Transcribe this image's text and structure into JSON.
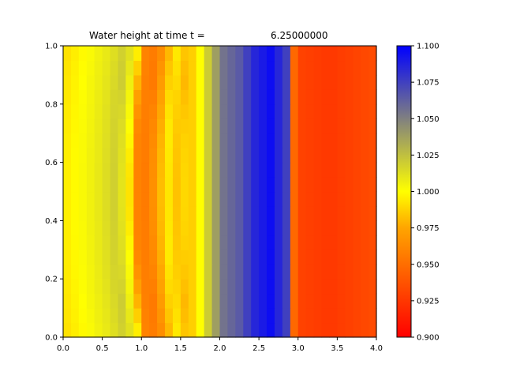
{
  "chart_data": {
    "type": "heatmap",
    "title_prefix": "Water height at time t =",
    "title_time": "6.25000000",
    "xlabel": "",
    "ylabel": "",
    "xlim": [
      0.0,
      4.0
    ],
    "ylim": [
      0.0,
      1.0
    ],
    "x_ticks": [
      0.0,
      0.5,
      1.0,
      1.5,
      2.0,
      2.5,
      3.0,
      3.5,
      4.0
    ],
    "x_tick_labels": [
      "0.0",
      "0.5",
      "1.0",
      "1.5",
      "2.0",
      "2.5",
      "3.0",
      "3.5",
      "4.0"
    ],
    "y_ticks": [
      0.0,
      0.2,
      0.4,
      0.6,
      0.8,
      1.0
    ],
    "y_tick_labels": [
      "0.0",
      "0.2",
      "0.4",
      "0.6",
      "0.8",
      "1.0"
    ],
    "grid": false,
    "colorbar": {
      "range": [
        0.9,
        1.1
      ],
      "ticks": [
        0.9,
        0.925,
        0.95,
        0.975,
        1.0,
        1.025,
        1.05,
        1.075,
        1.1
      ],
      "tick_labels": [
        "0.900",
        "0.925",
        "0.950",
        "0.975",
        "1.000",
        "1.025",
        "1.050",
        "1.075",
        "1.100"
      ],
      "colormap": [
        {
          "value": 0.9,
          "color": "#ff0000"
        },
        {
          "value": 0.975,
          "color": "#ffa500"
        },
        {
          "value": 1.0,
          "color": "#ffff00"
        },
        {
          "value": 1.05,
          "color": "#808080"
        },
        {
          "value": 1.1,
          "color": "#0000ff"
        }
      ]
    },
    "grid_nx": 40,
    "grid_ny": 20,
    "profile": [
      {
        "x": 0.0,
        "h": 0.99
      },
      {
        "x": 0.3,
        "h": 1.0
      },
      {
        "x": 0.6,
        "h": 1.01
      },
      {
        "x": 0.8,
        "h": 1.02
      },
      {
        "x": 0.95,
        "h": 1.0
      },
      {
        "x": 1.05,
        "h": 0.96
      },
      {
        "x": 1.2,
        "h": 0.955
      },
      {
        "x": 1.3,
        "h": 0.97
      },
      {
        "x": 1.45,
        "h": 0.995
      },
      {
        "x": 1.6,
        "h": 0.98
      },
      {
        "x": 1.75,
        "h": 1.0
      },
      {
        "x": 1.9,
        "h": 1.03
      },
      {
        "x": 2.05,
        "h": 1.055
      },
      {
        "x": 2.25,
        "h": 1.065
      },
      {
        "x": 2.45,
        "h": 1.085
      },
      {
        "x": 2.65,
        "h": 1.095
      },
      {
        "x": 2.85,
        "h": 1.075
      },
      {
        "x": 2.92,
        "h": 1.0
      },
      {
        "x": 2.96,
        "h": 0.93
      },
      {
        "x": 3.0,
        "h": 1.005
      },
      {
        "x": 3.05,
        "h": 0.93
      },
      {
        "x": 3.4,
        "h": 0.925
      },
      {
        "x": 3.7,
        "h": 0.93
      },
      {
        "x": 4.0,
        "h": 0.935
      }
    ]
  }
}
